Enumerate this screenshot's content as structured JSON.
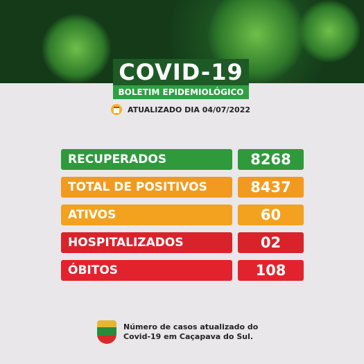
{
  "header": {
    "title": "COVID-19",
    "subtitle": "BOLETIM EPIDEMIOLÓGICO",
    "updated": "ATUALIZADO DIA 04/07/2022"
  },
  "stats": [
    {
      "label": "RECUPERADOS",
      "value": "8268",
      "color": "#2f9a3c"
    },
    {
      "label": "TOTAL DE POSITIVOS",
      "value": "8437",
      "color": "#f29a1f"
    },
    {
      "label": "ATIVOS",
      "value": "60",
      "color": "#f3a21f"
    },
    {
      "label": "HOSPITALIZADOS",
      "value": "02",
      "color": "#d9232b"
    },
    {
      "label": "ÓBITOS",
      "value": "108",
      "color": "#e2232e"
    }
  ],
  "footer": {
    "lines": [
      "Número de casos atualizado do",
      "Covid-19 em Caçapava do Sul."
    ]
  }
}
